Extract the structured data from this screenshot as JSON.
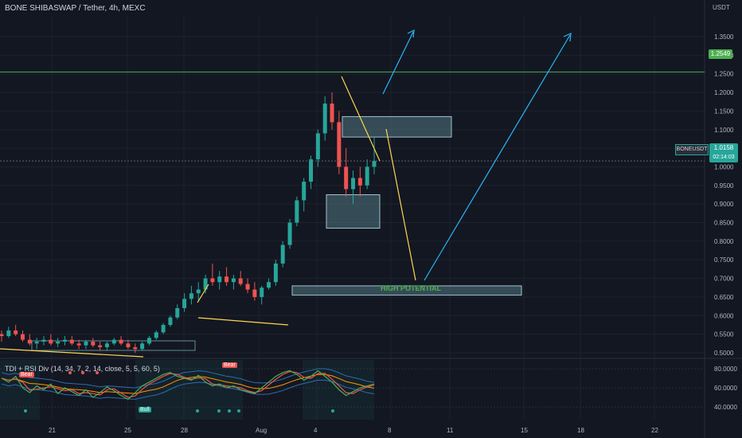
{
  "header": {
    "title": "BONE SHIBASWAP / Tether, 4h, MEXC",
    "currency": "USDT"
  },
  "price_tag": {
    "symbol": "BONEUSDT",
    "price": "1.0158",
    "countdown": "02:14:03"
  },
  "level_tag": "1.2549",
  "annotation": "HIGH POTENTIAL",
  "indicator": {
    "title": "TDI + RSI Div (14, 34, 7, 2, 14, close, 5, 5, 60, 5)",
    "badges": {
      "bear1": "Bear",
      "bear2": "Bear",
      "bull": "Bull"
    },
    "ticks": [
      "80.0000",
      "60.0000",
      "40.0000"
    ]
  },
  "chart_data": {
    "type": "candlestick",
    "y_ticks": [
      "1.3500",
      "1.3000",
      "1.2500",
      "1.2000",
      "1.1500",
      "1.1000",
      "1.0500",
      "1.0000",
      "0.9500",
      "0.9000",
      "0.8500",
      "0.8000",
      "0.7500",
      "0.7000",
      "0.6500",
      "0.6000",
      "0.5500",
      "0.5000"
    ],
    "x_ticks": [
      "21",
      "25",
      "28",
      "Aug",
      "4",
      "8",
      "11",
      "15",
      "18",
      "22"
    ],
    "colors": {
      "up": "#26a69a",
      "down": "#ef5350",
      "resistance": "#4caf50",
      "trend": "#ffd54f",
      "arrow": "#29b6f6",
      "zone": "#5f8c96"
    },
    "levels": {
      "horizontal_green": 1.2549,
      "current_price": 1.0158
    },
    "zones": [
      {
        "x_start": "Aug 5",
        "x_end": "Aug 11",
        "y_low": 1.08,
        "y_high": 1.135
      },
      {
        "x_start": "Aug 4",
        "x_end": "Aug 7",
        "y_low": 0.835,
        "y_high": 0.925
      },
      {
        "x_start": "Aug 2",
        "x_end": "Aug 15",
        "y_low": 0.655,
        "y_high": 0.68
      }
    ],
    "candles_approx": [
      [
        0.55,
        0.56,
        0.53,
        0.545
      ],
      [
        0.545,
        0.57,
        0.54,
        0.56
      ],
      [
        0.56,
        0.575,
        0.545,
        0.55
      ],
      [
        0.55,
        0.56,
        0.53,
        0.535
      ],
      [
        0.535,
        0.55,
        0.52,
        0.525
      ],
      [
        0.525,
        0.54,
        0.51,
        0.53
      ],
      [
        0.53,
        0.545,
        0.52,
        0.535
      ],
      [
        0.535,
        0.55,
        0.52,
        0.525
      ],
      [
        0.525,
        0.54,
        0.515,
        0.53
      ],
      [
        0.53,
        0.545,
        0.52,
        0.535
      ],
      [
        0.535,
        0.545,
        0.52,
        0.525
      ],
      [
        0.525,
        0.535,
        0.51,
        0.52
      ],
      [
        0.52,
        0.535,
        0.51,
        0.53
      ],
      [
        0.53,
        0.54,
        0.515,
        0.52
      ],
      [
        0.52,
        0.53,
        0.505,
        0.515
      ],
      [
        0.515,
        0.53,
        0.505,
        0.525
      ],
      [
        0.525,
        0.54,
        0.52,
        0.535
      ],
      [
        0.535,
        0.545,
        0.52,
        0.525
      ],
      [
        0.525,
        0.535,
        0.51,
        0.515
      ],
      [
        0.515,
        0.525,
        0.5,
        0.51
      ],
      [
        0.51,
        0.53,
        0.505,
        0.525
      ],
      [
        0.525,
        0.545,
        0.52,
        0.54
      ],
      [
        0.54,
        0.56,
        0.535,
        0.555
      ],
      [
        0.555,
        0.58,
        0.55,
        0.575
      ],
      [
        0.575,
        0.6,
        0.57,
        0.595
      ],
      [
        0.595,
        0.63,
        0.59,
        0.62
      ],
      [
        0.62,
        0.66,
        0.61,
        0.645
      ],
      [
        0.645,
        0.68,
        0.63,
        0.66
      ],
      [
        0.66,
        0.69,
        0.64,
        0.67
      ],
      [
        0.67,
        0.71,
        0.66,
        0.7
      ],
      [
        0.7,
        0.74,
        0.68,
        0.69
      ],
      [
        0.69,
        0.72,
        0.67,
        0.705
      ],
      [
        0.705,
        0.73,
        0.68,
        0.69
      ],
      [
        0.69,
        0.71,
        0.67,
        0.7
      ],
      [
        0.7,
        0.72,
        0.68,
        0.685
      ],
      [
        0.685,
        0.7,
        0.66,
        0.67
      ],
      [
        0.67,
        0.69,
        0.64,
        0.65
      ],
      [
        0.65,
        0.68,
        0.63,
        0.675
      ],
      [
        0.675,
        0.7,
        0.67,
        0.69
      ],
      [
        0.69,
        0.75,
        0.68,
        0.74
      ],
      [
        0.74,
        0.8,
        0.73,
        0.79
      ],
      [
        0.79,
        0.86,
        0.78,
        0.85
      ],
      [
        0.85,
        0.92,
        0.84,
        0.91
      ],
      [
        0.91,
        0.97,
        0.88,
        0.96
      ],
      [
        0.96,
        1.03,
        0.94,
        1.02
      ],
      [
        1.02,
        1.1,
        1.0,
        1.09
      ],
      [
        1.09,
        1.19,
        1.07,
        1.17
      ],
      [
        1.17,
        1.2,
        1.1,
        1.12
      ],
      [
        1.12,
        1.15,
        0.98,
        1.0
      ],
      [
        1.0,
        1.05,
        0.92,
        0.94
      ],
      [
        0.94,
        0.99,
        0.9,
        0.97
      ],
      [
        0.97,
        1.0,
        0.92,
        0.95
      ],
      [
        0.95,
        1.02,
        0.94,
        1.0
      ],
      [
        1.0,
        1.08,
        0.98,
        1.0158
      ]
    ]
  }
}
